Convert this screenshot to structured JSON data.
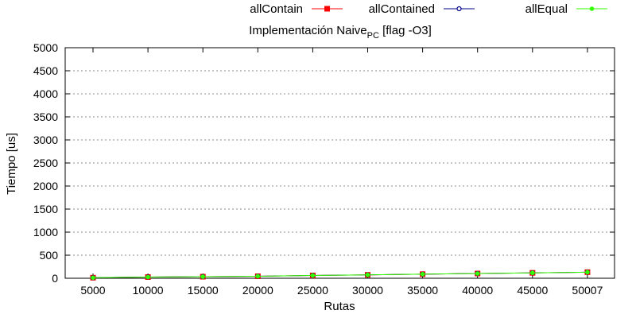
{
  "chart_data": {
    "type": "line",
    "title": "Implementación Naive",
    "title_subscript": "PC",
    "title_suffix": " [flag -O3]",
    "xlabel": "Rutas",
    "ylabel": "Tiempo [us]",
    "categories": [
      "5000",
      "10000",
      "15000",
      "20000",
      "25000",
      "30000",
      "35000",
      "40000",
      "45000",
      "50007"
    ],
    "ylim": [
      0,
      5000
    ],
    "yticks": [
      0,
      500,
      1000,
      1500,
      2000,
      2500,
      3000,
      3500,
      4000,
      4500,
      5000
    ],
    "grid": "horizontal",
    "legend_position": "top",
    "series": [
      {
        "name": "allContain",
        "color": "#ff0000",
        "marker": "square",
        "values": [
          12,
          26,
          34,
          44,
          60,
          74,
          89,
          103,
          117,
          132
        ]
      },
      {
        "name": "allContained",
        "color": "#00008b",
        "marker": "open-circle",
        "values": [
          12,
          26,
          34,
          44,
          60,
          74,
          89,
          103,
          117,
          132
        ]
      },
      {
        "name": "allEqual",
        "color": "#33ff00",
        "marker": "filled-circle",
        "values": [
          12,
          26,
          34,
          44,
          60,
          74,
          89,
          103,
          117,
          132
        ]
      }
    ]
  }
}
